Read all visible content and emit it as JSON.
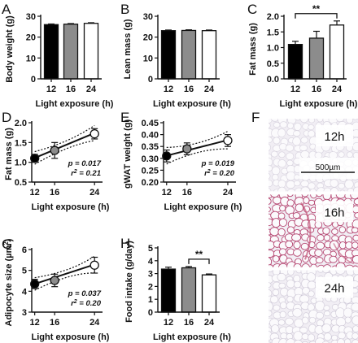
{
  "figure": {
    "panel_labels": [
      "A",
      "B",
      "C",
      "D",
      "E",
      "F",
      "G",
      "H"
    ],
    "histology": {
      "labels": [
        "12h",
        "16h",
        "24h"
      ],
      "scale_bar": "500µm",
      "stain_color": "#c25477"
    }
  },
  "chart_data": [
    {
      "panel": "A",
      "type": "bar",
      "categories": [
        "12",
        "16",
        "24"
      ],
      "values": [
        26,
        26.2,
        26.6
      ],
      "errors": [
        0.3,
        0.3,
        0.3
      ],
      "colors": [
        "#000000",
        "#8c8c8c",
        "#ffffff"
      ],
      "ylabel": "Body weight (g)",
      "xlabel": "Light exposure (h)",
      "ylim": [
        0,
        30
      ],
      "yticks": [
        "0",
        "10",
        "20",
        "30"
      ]
    },
    {
      "panel": "B",
      "type": "bar",
      "categories": [
        "12",
        "16",
        "24"
      ],
      "values": [
        23.1,
        23.2,
        23.1
      ],
      "errors": [
        0.3,
        0.3,
        0.3
      ],
      "colors": [
        "#000000",
        "#8c8c8c",
        "#ffffff"
      ],
      "ylabel": "Lean mass (g)",
      "xlabel": "Light exposure (h)",
      "ylim": [
        0,
        30
      ],
      "yticks": [
        "0",
        "10",
        "20",
        "30"
      ]
    },
    {
      "panel": "C",
      "type": "bar",
      "categories": [
        "12",
        "16",
        "24"
      ],
      "values": [
        1.1,
        1.3,
        1.72
      ],
      "errors": [
        0.1,
        0.22,
        0.13
      ],
      "colors": [
        "#000000",
        "#8c8c8c",
        "#ffffff"
      ],
      "ylabel": "Fat mass (g)",
      "xlabel": "Light exposure (h)",
      "ylim": [
        0,
        2
      ],
      "yticks": [
        "0.0",
        "0.5",
        "1.0",
        "1.5",
        "2.0"
      ],
      "significance": {
        "pair": [
          "12",
          "24"
        ],
        "label": "**"
      }
    },
    {
      "panel": "D",
      "type": "scatter",
      "x": [
        12,
        16,
        24
      ],
      "y": [
        1.1,
        1.3,
        1.72
      ],
      "errors": [
        0.1,
        0.2,
        0.13
      ],
      "fit": {
        "y_at_12": 1.11,
        "y_at_24": 1.74,
        "ci_half_width": {
          "12": 0.16,
          "18": 0.1,
          "24": 0.19
        }
      },
      "ylabel": "Fat mass (g)",
      "xlabel": "Light exposure (h)",
      "xlim": [
        11.4,
        25.6
      ],
      "ylim": [
        0.5,
        2.0
      ],
      "xticks": [
        "12",
        "16",
        "24"
      ],
      "yticks": [
        "0.5",
        "1.0",
        "1.5",
        "2.0"
      ],
      "stats": [
        "p = 0.017",
        "r² = 0.21"
      ]
    },
    {
      "panel": "E",
      "type": "scatter",
      "x": [
        12,
        16,
        24
      ],
      "y": [
        0.31,
        0.34,
        0.375
      ],
      "errors": [
        0.025,
        0.025,
        0.025
      ],
      "fit": {
        "y_at_12": 0.311,
        "y_at_24": 0.377,
        "ci_half_width": {
          "12": 0.035,
          "18": 0.02,
          "24": 0.037
        }
      },
      "ylabel": "gWAT weight (g)",
      "xlabel": "Light exposure (h)",
      "xlim": [
        11.4,
        25.6
      ],
      "ylim": [
        0.2,
        0.45
      ],
      "xticks": [
        "12",
        "16",
        "24"
      ],
      "yticks": [
        "0.20",
        "0.25",
        "0.30",
        "0.35",
        "0.40",
        "0.45"
      ],
      "stats": [
        "p = 0.019",
        "r² = 0.20"
      ]
    },
    {
      "panel": "G",
      "type": "scatter",
      "x": [
        12,
        16,
        24
      ],
      "y": [
        4.35,
        4.52,
        5.25
      ],
      "errors": [
        0.22,
        0.3,
        0.38
      ],
      "fit": {
        "y_at_12": 4.35,
        "y_at_24": 5.28,
        "ci_half_width": {
          "12": 0.3,
          "18": 0.18,
          "24": 0.4
        }
      },
      "ylabel": "Adipocyte size (µm²)",
      "xlabel": "Light exposure (h)",
      "xlim": [
        11.4,
        25.6
      ],
      "ylim": [
        3,
        6
      ],
      "xticks": [
        "12",
        "16",
        "24"
      ],
      "yticks": [
        "3",
        "4",
        "5",
        "6"
      ],
      "stats": [
        "p = 0.037",
        "r² = 0.20"
      ]
    },
    {
      "panel": "H",
      "type": "bar",
      "categories": [
        "12",
        "16",
        "24"
      ],
      "values": [
        3.35,
        3.45,
        2.9
      ],
      "errors": [
        0.15,
        0.1,
        0.07
      ],
      "colors": [
        "#000000",
        "#8c8c8c",
        "#ffffff"
      ],
      "ylabel": "Food intake (g/day)",
      "xlabel": "Light exposure (h)",
      "ylim": [
        0,
        5
      ],
      "yticks": [
        "0",
        "1",
        "2",
        "3",
        "4",
        "5"
      ],
      "significance": {
        "pair": [
          "16",
          "24"
        ],
        "label": "**"
      }
    }
  ]
}
